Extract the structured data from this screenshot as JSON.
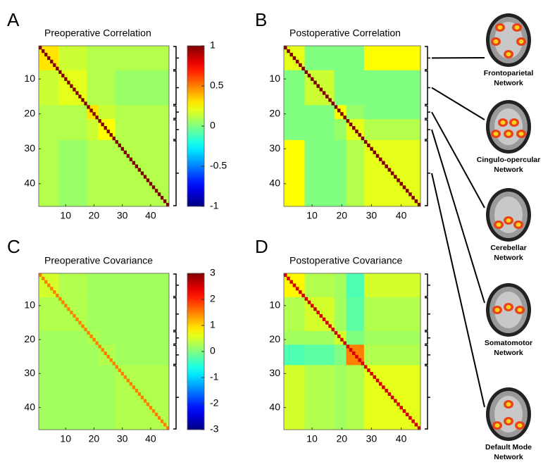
{
  "figure": {
    "panels": [
      {
        "letter": "A",
        "title": "Preoperative Correlation",
        "axis_ticks": [
          10,
          20,
          30,
          40
        ],
        "colorbar": {
          "range": [
            -1,
            1
          ],
          "ticks": [
            1,
            0.5,
            0,
            -0.5,
            -1
          ]
        },
        "diagonal": 1,
        "block_values": [
          [
            0.3,
            0.15,
            0.1,
            0.1,
            0.1
          ],
          [
            0.15,
            0.2,
            0.1,
            0.1,
            0.05
          ],
          [
            0.1,
            0.1,
            0.3,
            0.15,
            0.1
          ],
          [
            0.1,
            0.1,
            0.15,
            0.25,
            0.1
          ],
          [
            0.1,
            0.05,
            0.1,
            0.1,
            0.1
          ]
        ]
      },
      {
        "letter": "B",
        "title": "Postoperative Correlation",
        "axis_ticks": [
          10,
          20,
          30,
          40
        ],
        "colorbar": {
          "range": [
            -1,
            1
          ],
          "ticks": [
            1,
            0.5,
            0,
            -0.5,
            -1
          ]
        },
        "diagonal": 1,
        "block_values": [
          [
            0.2,
            0,
            0,
            0,
            0.25
          ],
          [
            0,
            0.15,
            0,
            0,
            0
          ],
          [
            0,
            0,
            0.25,
            0.05,
            0
          ],
          [
            0,
            0,
            0.05,
            0.2,
            0.1
          ],
          [
            0.25,
            0,
            0,
            0.1,
            0.2
          ]
        ]
      },
      {
        "letter": "C",
        "title": "Preoperative Covariance",
        "axis_ticks": [
          10,
          20,
          30,
          40
        ],
        "colorbar": {
          "range": [
            -3,
            3
          ],
          "ticks": [
            3,
            2,
            1,
            0,
            -1,
            -2,
            -3
          ]
        },
        "diagonal": 1.5,
        "block_values": [
          [
            0.5,
            0.3,
            0.2,
            0.2,
            0.2
          ],
          [
            0.3,
            0.3,
            0.2,
            0.2,
            0.2
          ],
          [
            0.2,
            0.2,
            0.3,
            0.2,
            0.2
          ],
          [
            0.2,
            0.2,
            0.2,
            0.3,
            0.2
          ],
          [
            0.2,
            0.2,
            0.2,
            0.2,
            0.3
          ]
        ]
      },
      {
        "letter": "D",
        "title": "Postoperative Covariance",
        "axis_ticks": [
          10,
          20,
          30,
          40
        ],
        "colorbar": {
          "range": [
            -3,
            3
          ],
          "ticks": [
            3,
            2,
            1,
            0,
            -1,
            -2,
            -3
          ]
        },
        "diagonal": 2.5,
        "block_values": [
          [
            0.8,
            0.3,
            0.2,
            -0.3,
            0.5
          ],
          [
            0.3,
            0.5,
            0.2,
            -0.2,
            0.3
          ],
          [
            0.2,
            0.2,
            0.5,
            0,
            0.2
          ],
          [
            -0.3,
            -0.2,
            0,
            1.5,
            0.3
          ],
          [
            0.5,
            0.3,
            0.2,
            0.3,
            0.6
          ]
        ]
      }
    ],
    "networks": [
      {
        "label": [
          "Frontoparietal",
          "Network"
        ],
        "start": 1,
        "end": 7
      },
      {
        "label": [
          "Cingulo-opercular",
          "Network"
        ],
        "start": 8,
        "end": 17
      },
      {
        "label": [
          "Cerebellar",
          "Network"
        ],
        "start": 18,
        "end": 21
      },
      {
        "label": [
          "Somatomotor",
          "Network"
        ],
        "start": 22,
        "end": 27
      },
      {
        "label": [
          "Default Mode",
          "Network"
        ],
        "start": 28,
        "end": 46
      }
    ]
  }
}
